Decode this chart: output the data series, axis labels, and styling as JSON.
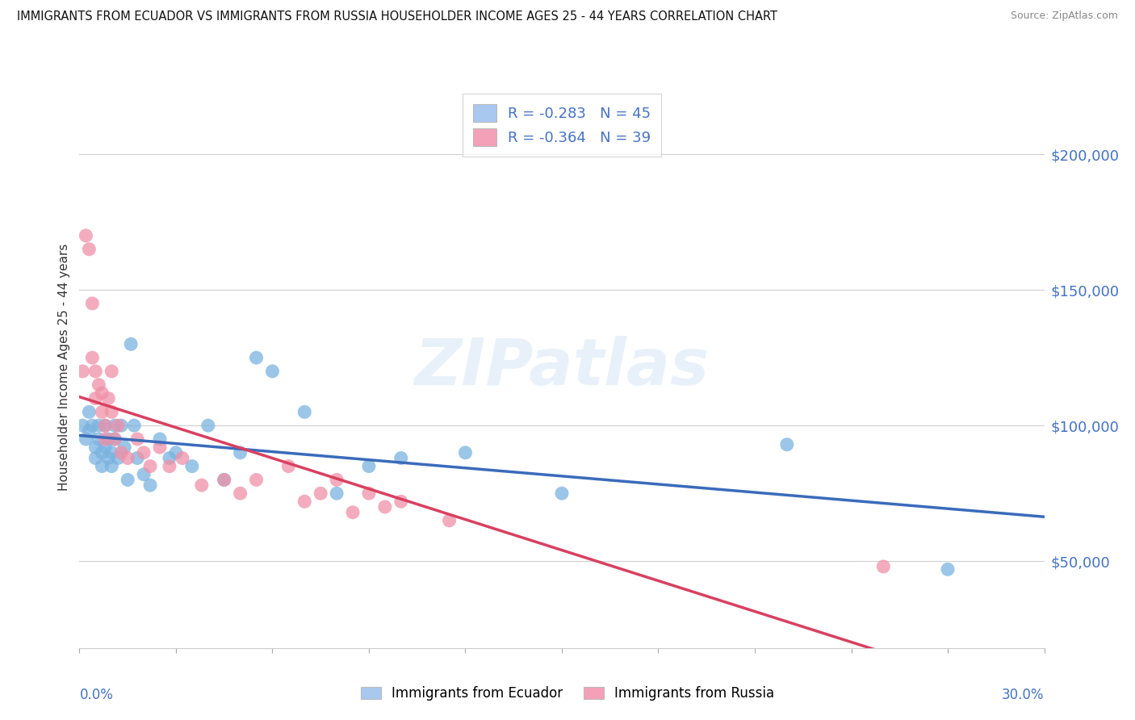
{
  "title": "IMMIGRANTS FROM ECUADOR VS IMMIGRANTS FROM RUSSIA HOUSEHOLDER INCOME AGES 25 - 44 YEARS CORRELATION CHART",
  "source": "Source: ZipAtlas.com",
  "ylabel": "Householder Income Ages 25 - 44 years",
  "legend_R_N": [
    {
      "color": "#a8c8f0",
      "R": "-0.283",
      "N": "45"
    },
    {
      "color": "#f4a0b8",
      "R": "-0.364",
      "N": "39"
    }
  ],
  "bottom_labels": [
    "Immigrants from Ecuador",
    "Immigrants from Russia"
  ],
  "ecuador_color": "#7ab3e0",
  "russia_color": "#f090a8",
  "ecuador_line_color": "#3a6bbb",
  "russia_line_color": "#d94060",
  "watermark": "ZIPatlas",
  "ytick_values": [
    50000,
    100000,
    150000,
    200000
  ],
  "ytick_labels": [
    "$50,000",
    "$100,000",
    "$150,000",
    "$200,000"
  ],
  "ylim": [
    18000,
    225000
  ],
  "xlim": [
    0.0,
    0.3
  ],
  "ecuador_x": [
    0.001,
    0.002,
    0.003,
    0.003,
    0.004,
    0.005,
    0.005,
    0.006,
    0.006,
    0.007,
    0.007,
    0.008,
    0.008,
    0.009,
    0.009,
    0.01,
    0.01,
    0.011,
    0.011,
    0.012,
    0.013,
    0.014,
    0.015,
    0.016,
    0.017,
    0.018,
    0.02,
    0.022,
    0.025,
    0.028,
    0.03,
    0.035,
    0.04,
    0.045,
    0.05,
    0.055,
    0.06,
    0.07,
    0.08,
    0.09,
    0.1,
    0.12,
    0.15,
    0.22,
    0.27
  ],
  "ecuador_y": [
    100000,
    95000,
    105000,
    98000,
    100000,
    92000,
    88000,
    100000,
    95000,
    90000,
    85000,
    100000,
    92000,
    88000,
    95000,
    90000,
    85000,
    100000,
    95000,
    88000,
    100000,
    92000,
    80000,
    130000,
    100000,
    88000,
    82000,
    78000,
    95000,
    88000,
    90000,
    85000,
    100000,
    80000,
    90000,
    125000,
    120000,
    105000,
    75000,
    85000,
    88000,
    90000,
    75000,
    93000,
    47000
  ],
  "russia_x": [
    0.001,
    0.002,
    0.003,
    0.004,
    0.004,
    0.005,
    0.005,
    0.006,
    0.007,
    0.007,
    0.008,
    0.008,
    0.009,
    0.01,
    0.01,
    0.011,
    0.012,
    0.013,
    0.015,
    0.018,
    0.02,
    0.022,
    0.025,
    0.028,
    0.032,
    0.038,
    0.045,
    0.05,
    0.055,
    0.065,
    0.07,
    0.075,
    0.08,
    0.085,
    0.09,
    0.095,
    0.1,
    0.115,
    0.25
  ],
  "russia_y": [
    120000,
    170000,
    165000,
    125000,
    145000,
    120000,
    110000,
    115000,
    105000,
    112000,
    100000,
    95000,
    110000,
    120000,
    105000,
    95000,
    100000,
    90000,
    88000,
    95000,
    90000,
    85000,
    92000,
    85000,
    88000,
    78000,
    80000,
    75000,
    80000,
    85000,
    72000,
    75000,
    80000,
    68000,
    75000,
    70000,
    72000,
    65000,
    48000
  ]
}
